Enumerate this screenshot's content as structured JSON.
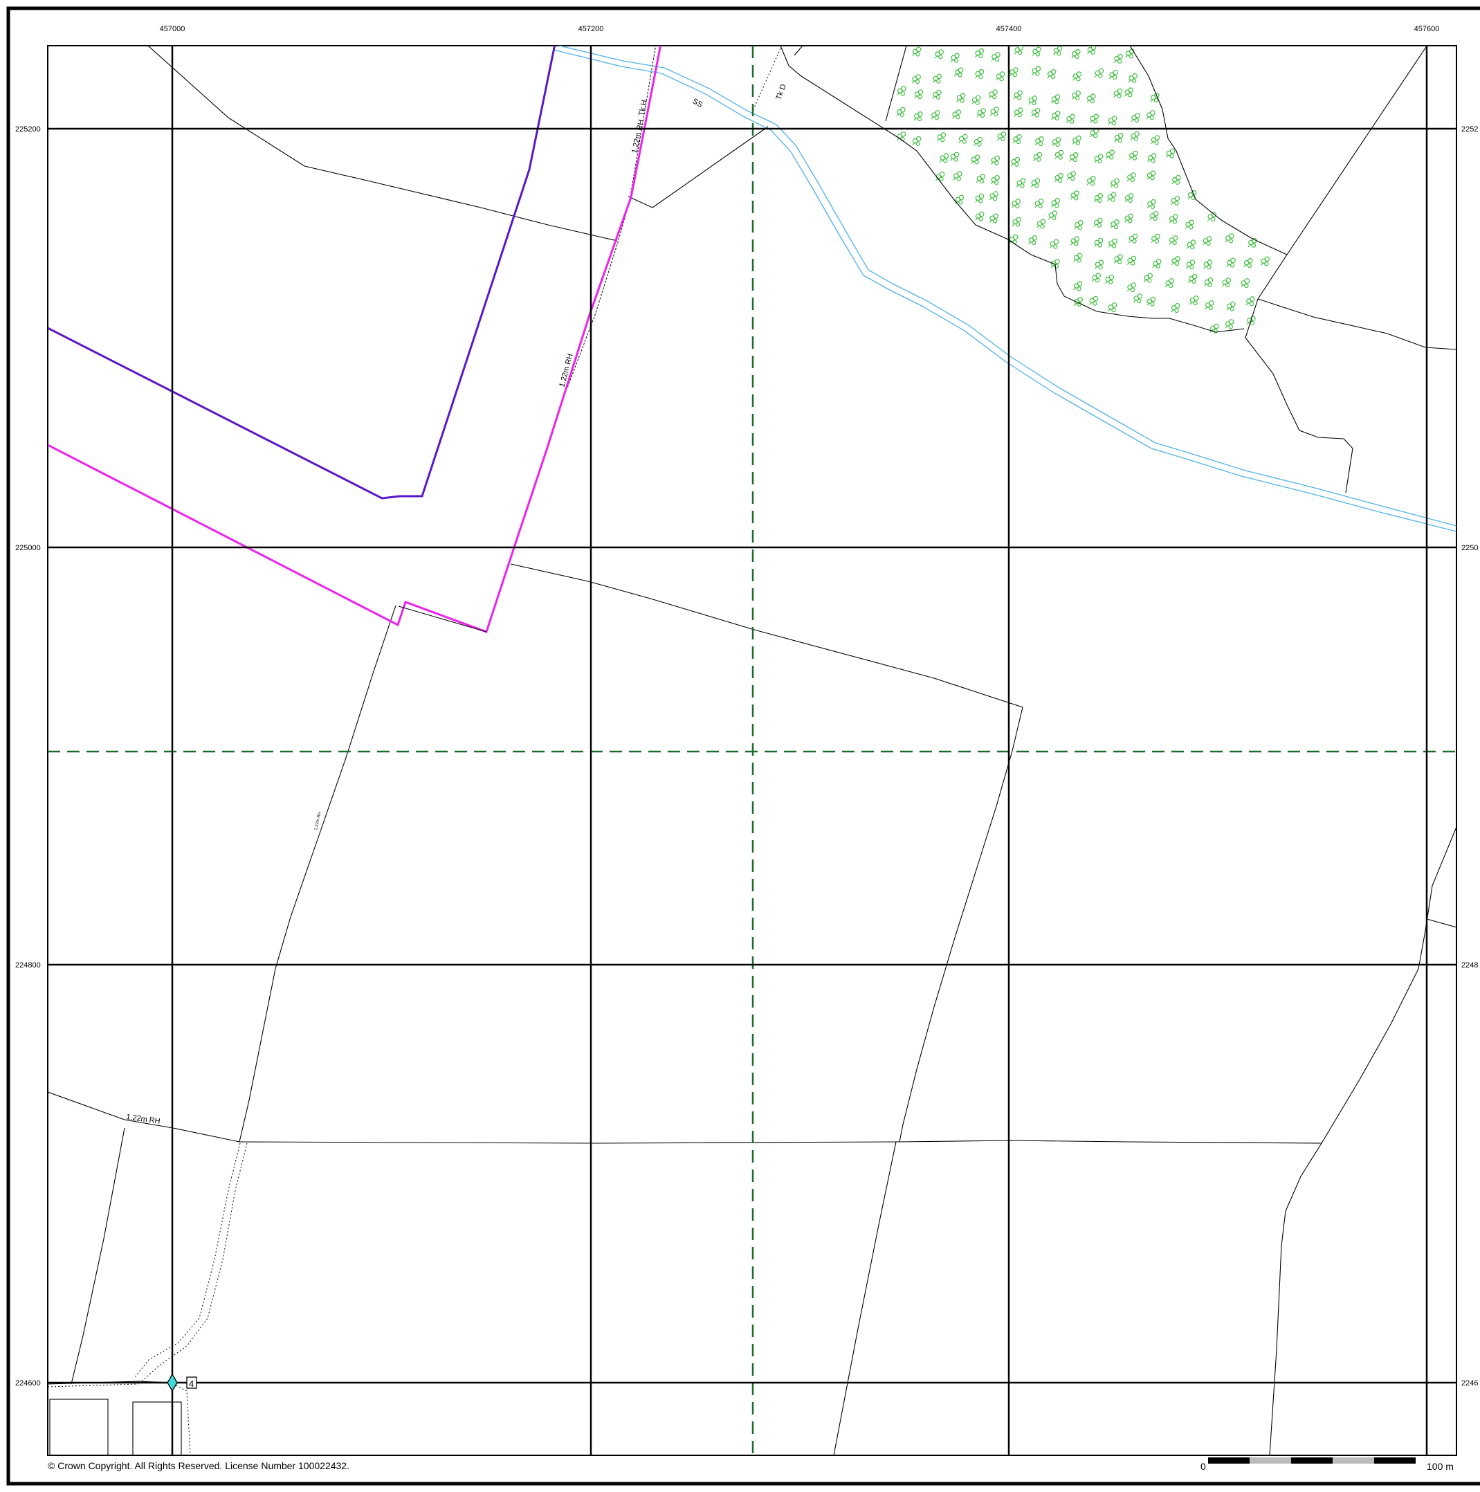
{
  "map": {
    "grid_eastings": [
      "457000",
      "457200",
      "457400",
      "457600"
    ],
    "grid_northings": [
      "225200",
      "225000",
      "224800",
      "224600"
    ],
    "grid_northings_right": [
      "2252",
      "2250",
      "2248",
      "2246"
    ],
    "feature_labels": {
      "hedge_top_1": "1.22m RH",
      "track_h": "Tk H",
      "track_d": "Tk D",
      "ss": "SS",
      "hedge_middle": "1.22m RH",
      "hedge_small": "1.22m RH",
      "hedge_bottom_left": "1.22m RH",
      "station_marker": "4"
    },
    "copyright": "© Crown Copyright. All Rights Reserved. License Number 100022432.",
    "scale_bar": {
      "start_label": "0",
      "end_label": "100 m",
      "length_m": 100
    },
    "colors": {
      "grid": "#000000",
      "water": "#4fb3e8",
      "boundary_purple": "#5a17c8",
      "boundary_magenta": "#ee22ee",
      "dashed_sheet_line": "#1c6b2c",
      "woodland_symbol": "#3fbf3f",
      "station_marker": "#3fd9d9"
    }
  }
}
